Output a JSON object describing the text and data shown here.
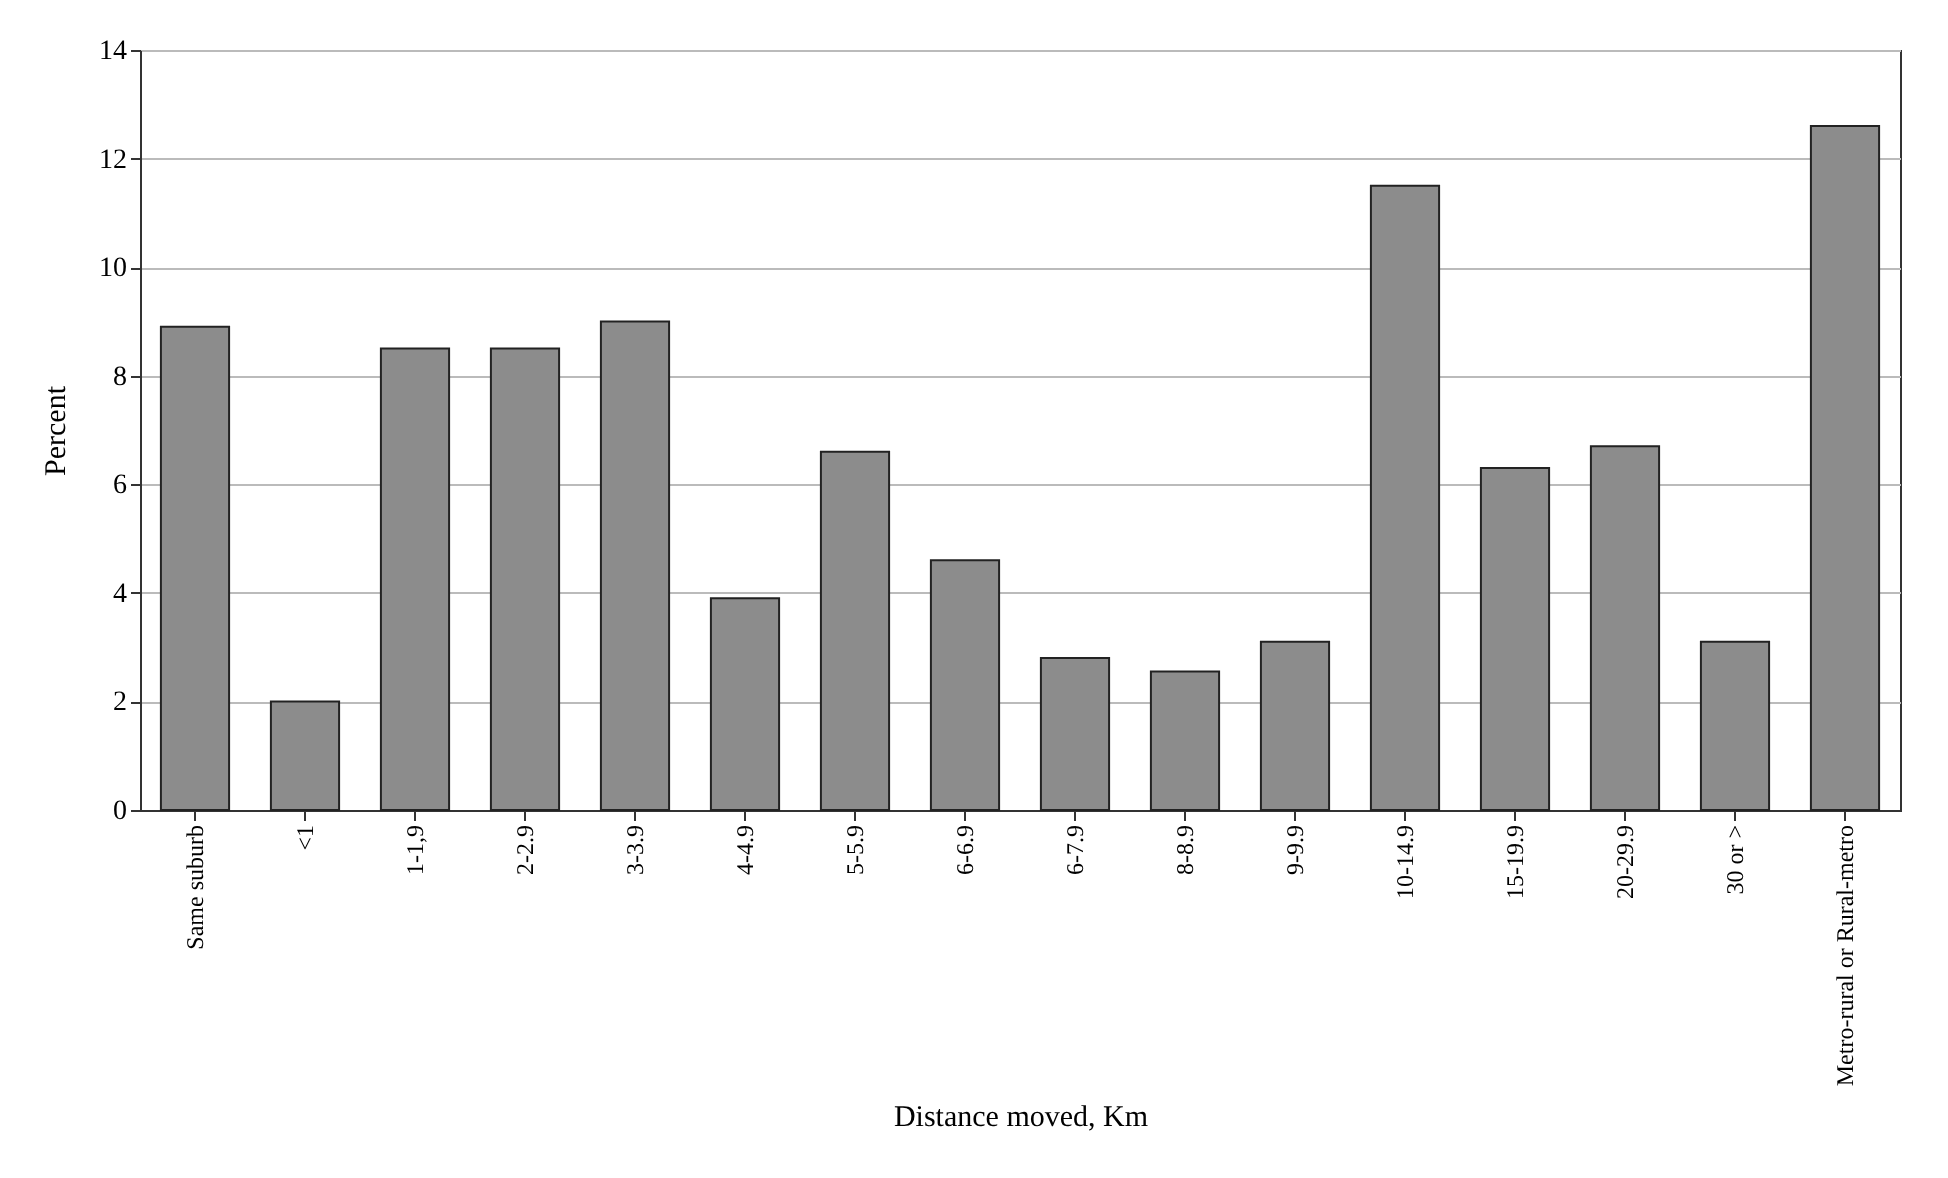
{
  "chart_data": {
    "type": "bar",
    "xlabel": "Distance moved, Km",
    "ylabel": "Percent",
    "categories": [
      "Same suburb",
      "<1",
      "1-1,9",
      "2-2.9",
      "3-3.9",
      "4-4.9",
      "5-5.9",
      "6-6.9",
      "6-7.9",
      "8-8.9",
      "9-9.9",
      "10-14.9",
      "15-19.9",
      "20-29.9",
      "30 or >",
      "Metro-rural or Rural-metro"
    ],
    "values": [
      8.9,
      2.0,
      8.5,
      8.5,
      9.0,
      3.9,
      6.6,
      4.6,
      2.8,
      2.55,
      3.1,
      11.5,
      6.3,
      6.7,
      3.1,
      12.6
    ],
    "color": "#8c8c8c",
    "ylim": [
      0,
      14
    ],
    "yticks": [
      0,
      2,
      4,
      6,
      8,
      10,
      12,
      14
    ],
    "grid": "y"
  }
}
